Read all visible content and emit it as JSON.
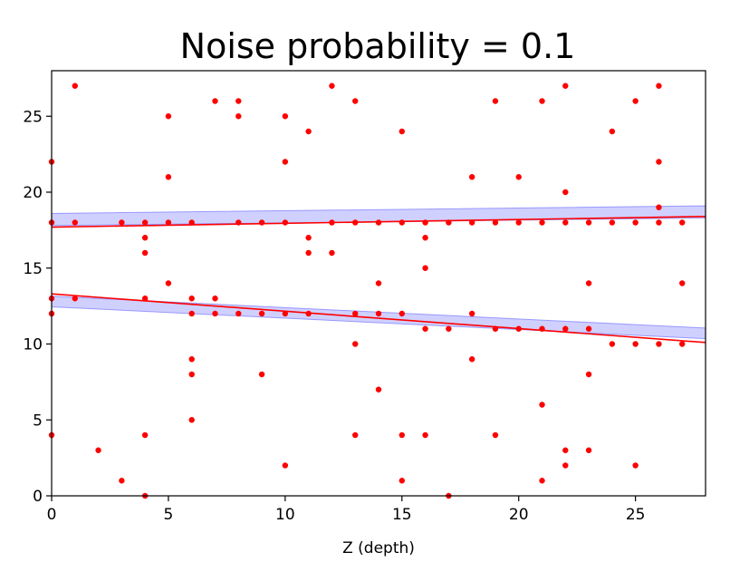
{
  "chart_data": {
    "type": "scatter",
    "title": "Noise probability = 0.1",
    "xlabel": "Z (depth)",
    "ylabel": "",
    "xlim": [
      0,
      28
    ],
    "ylim": [
      0,
      28
    ],
    "xticks": [
      0,
      5,
      10,
      15,
      20,
      25
    ],
    "yticks": [
      0,
      5,
      10,
      15,
      20,
      25
    ],
    "grid": false,
    "colors": {
      "points": "#ff0000",
      "fit_line": "#ff0000",
      "band": "#7777ff",
      "frame": "#000000"
    },
    "points": [
      [
        0,
        22
      ],
      [
        0,
        18
      ],
      [
        0,
        13
      ],
      [
        0,
        12
      ],
      [
        0,
        4
      ],
      [
        1,
        27
      ],
      [
        1,
        18
      ],
      [
        1,
        13
      ],
      [
        2,
        3
      ],
      [
        3,
        18
      ],
      [
        3,
        1
      ],
      [
        4,
        18
      ],
      [
        4,
        17
      ],
      [
        4,
        16
      ],
      [
        4,
        13
      ],
      [
        4,
        4
      ],
      [
        4,
        0
      ],
      [
        5,
        25
      ],
      [
        5,
        21
      ],
      [
        5,
        18
      ],
      [
        5,
        14
      ],
      [
        6,
        18
      ],
      [
        6,
        13
      ],
      [
        6,
        12
      ],
      [
        6,
        9
      ],
      [
        6,
        8
      ],
      [
        6,
        5
      ],
      [
        7,
        26
      ],
      [
        7,
        13
      ],
      [
        7,
        12
      ],
      [
        8,
        26
      ],
      [
        8,
        25
      ],
      [
        8,
        18
      ],
      [
        8,
        12
      ],
      [
        9,
        18
      ],
      [
        9,
        12
      ],
      [
        9,
        8
      ],
      [
        10,
        25
      ],
      [
        10,
        22
      ],
      [
        10,
        18
      ],
      [
        10,
        12
      ],
      [
        10,
        2
      ],
      [
        11,
        24
      ],
      [
        11,
        17
      ],
      [
        11,
        16
      ],
      [
        11,
        12
      ],
      [
        12,
        27
      ],
      [
        12,
        18
      ],
      [
        12,
        16
      ],
      [
        13,
        26
      ],
      [
        13,
        18
      ],
      [
        13,
        12
      ],
      [
        13,
        10
      ],
      [
        13,
        4
      ],
      [
        14,
        18
      ],
      [
        14,
        14
      ],
      [
        14,
        12
      ],
      [
        14,
        7
      ],
      [
        15,
        24
      ],
      [
        15,
        18
      ],
      [
        15,
        12
      ],
      [
        15,
        4
      ],
      [
        15,
        1
      ],
      [
        16,
        18
      ],
      [
        16,
        17
      ],
      [
        16,
        15
      ],
      [
        16,
        11
      ],
      [
        16,
        4
      ],
      [
        17,
        18
      ],
      [
        17,
        11
      ],
      [
        17,
        0
      ],
      [
        18,
        21
      ],
      [
        18,
        18
      ],
      [
        18,
        12
      ],
      [
        18,
        9
      ],
      [
        19,
        26
      ],
      [
        19,
        18
      ],
      [
        19,
        11
      ],
      [
        19,
        4
      ],
      [
        20,
        21
      ],
      [
        20,
        18
      ],
      [
        20,
        11
      ],
      [
        21,
        26
      ],
      [
        21,
        18
      ],
      [
        21,
        11
      ],
      [
        21,
        6
      ],
      [
        21,
        1
      ],
      [
        22,
        27
      ],
      [
        22,
        20
      ],
      [
        22,
        18
      ],
      [
        22,
        11
      ],
      [
        22,
        3
      ],
      [
        22,
        2
      ],
      [
        23,
        18
      ],
      [
        23,
        14
      ],
      [
        23,
        11
      ],
      [
        23,
        8
      ],
      [
        23,
        3
      ],
      [
        24,
        24
      ],
      [
        24,
        18
      ],
      [
        24,
        10
      ],
      [
        25,
        26
      ],
      [
        25,
        18
      ],
      [
        25,
        10
      ],
      [
        25,
        2
      ],
      [
        26,
        27
      ],
      [
        26,
        22
      ],
      [
        26,
        19
      ],
      [
        26,
        18
      ],
      [
        26,
        10
      ],
      [
        27,
        18
      ],
      [
        27,
        14
      ],
      [
        27,
        10
      ]
    ],
    "fit_lines": [
      {
        "x": [
          0,
          28
        ],
        "y": [
          17.7,
          18.4
        ]
      },
      {
        "x": [
          0,
          28
        ],
        "y": [
          13.3,
          10.1
        ]
      }
    ],
    "bands": [
      {
        "x": [
          0,
          28
        ],
        "y_center": [
          18.2,
          18.7
        ],
        "half_width": 0.4
      },
      {
        "x": [
          0,
          28
        ],
        "y_center": [
          12.8,
          10.7
        ],
        "half_width": 0.35
      }
    ]
  }
}
